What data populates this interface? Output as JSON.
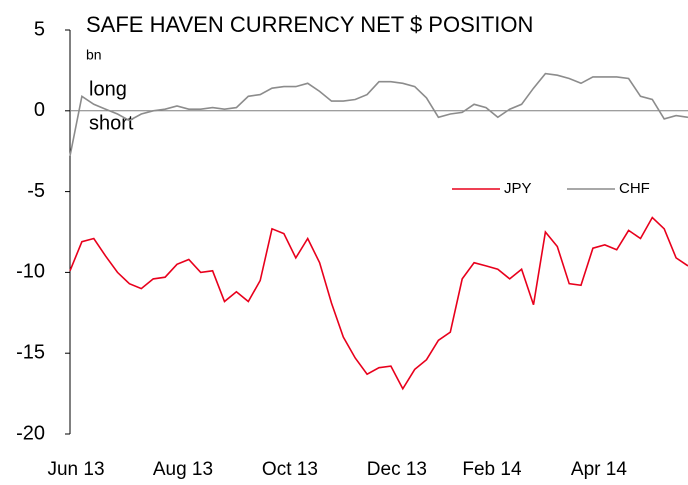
{
  "chart_data": {
    "type": "line",
    "title": "SAFE HAVEN CURRENCY NET $ POSITION",
    "subtitle": "bn",
    "annotations": [
      "long",
      "short"
    ],
    "categories": [
      "Jun 13",
      null,
      null,
      null,
      null,
      null,
      null,
      null,
      null,
      "Aug 13",
      null,
      null,
      null,
      null,
      null,
      null,
      null,
      null,
      "Oct 13",
      null,
      null,
      null,
      null,
      null,
      null,
      null,
      null,
      "Dec 13",
      null,
      null,
      null,
      null,
      null,
      null,
      null,
      "Feb 14",
      null,
      null,
      null,
      null,
      null,
      null,
      null,
      null,
      "Apr 14",
      null,
      null,
      null,
      null,
      null,
      null,
      null,
      null
    ],
    "series": [
      {
        "name": "JPY",
        "color": "#e8001c",
        "values": [
          -9.9,
          -8.1,
          -7.9,
          -9.0,
          -10.0,
          -10.7,
          -11.0,
          -10.4,
          -10.3,
          -9.5,
          -9.2,
          -10.0,
          -9.9,
          -11.8,
          -11.2,
          -11.8,
          -10.5,
          -7.3,
          -7.6,
          -9.1,
          -7.9,
          -9.4,
          -11.9,
          -14.0,
          -15.3,
          -16.3,
          -15.9,
          -15.8,
          -17.2,
          -16.0,
          -15.4,
          -14.2,
          -13.7,
          -10.4,
          -9.4,
          -9.6,
          -9.8,
          -10.4,
          -9.8,
          -12.0,
          -7.5,
          -8.4,
          -10.7,
          -10.8,
          -8.5,
          -8.3,
          -8.6,
          -7.4,
          -7.9,
          -6.6,
          -7.3,
          -9.1,
          -9.6
        ]
      },
      {
        "name": "CHF",
        "color": "#8c8c8c",
        "values": [
          -2.8,
          0.9,
          0.4,
          0.1,
          -0.2,
          -0.6,
          -0.2,
          0,
          0.1,
          0.3,
          0.1,
          0.1,
          0.2,
          0.1,
          0.2,
          0.9,
          1.0,
          1.4,
          1.5,
          1.5,
          1.7,
          1.2,
          0.6,
          0.6,
          0.7,
          1.0,
          1.8,
          1.8,
          1.7,
          1.5,
          0.8,
          -0.4,
          -0.2,
          -0.1,
          0.4,
          0.2,
          -0.4,
          0.1,
          0.4,
          1.4,
          2.3,
          2.2,
          2.0,
          1.7,
          2.1,
          2.1,
          2.1,
          2.0,
          0.9,
          0.7,
          -0.5,
          -0.3,
          -0.4
        ]
      }
    ],
    "ylim": [
      -20,
      5
    ],
    "yticks": [
      -20,
      -15,
      -10,
      -5,
      0,
      5
    ],
    "legend": "right"
  }
}
